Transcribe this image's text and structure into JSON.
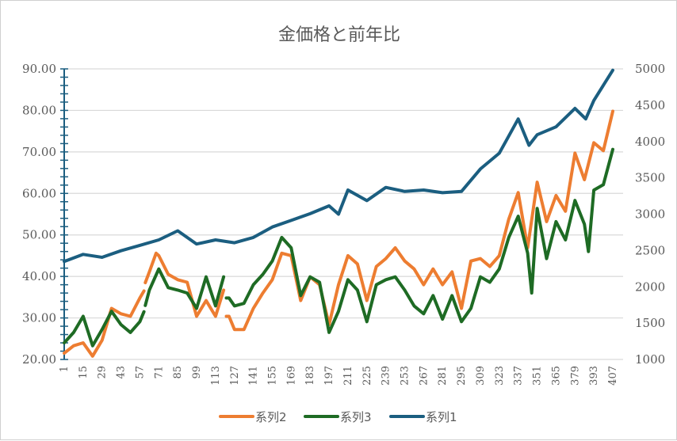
{
  "chart_data": {
    "type": "line",
    "title": "金価格と前年比",
    "xlabel": "",
    "ylabel": "",
    "x_ticks": [
      1,
      15,
      29,
      43,
      57,
      71,
      85,
      99,
      113,
      127,
      141,
      155,
      169,
      183,
      197,
      211,
      225,
      239,
      253,
      267,
      281,
      295,
      309,
      323,
      337,
      351,
      365,
      379,
      393,
      407
    ],
    "xlim": [
      1,
      407
    ],
    "y_left": {
      "ticks": [
        "20.00",
        "30.00",
        "40.00",
        "50.00",
        "60.00",
        "70.00",
        "80.00",
        "90.00"
      ],
      "ylim": [
        20,
        90
      ]
    },
    "y_right": {
      "ticks": [
        "1000",
        "1500",
        "2000",
        "2500",
        "3000",
        "3500",
        "4000",
        "4500",
        "5000"
      ],
      "ylim": [
        1000,
        5000
      ]
    },
    "grid": true,
    "legend_position": "bottom",
    "series": [
      {
        "name": "系列2",
        "axis": "left",
        "color": "#ED7D31",
        "x": [
          1,
          8,
          15,
          22,
          29,
          36,
          43,
          50,
          57,
          60,
          null,
          61,
          64,
          69,
          71,
          78,
          85,
          92,
          99,
          106,
          113,
          119,
          null,
          121,
          123,
          127,
          134,
          141,
          148,
          155,
          162,
          169,
          176,
          183,
          190,
          197,
          204,
          211,
          218,
          225,
          232,
          239,
          246,
          253,
          260,
          267,
          274,
          281,
          288,
          295,
          302,
          309,
          316,
          323,
          330,
          337,
          344,
          351,
          358,
          365,
          372,
          379,
          386,
          393,
          400,
          407
        ],
        "values": [
          21.5,
          23.3,
          24,
          20.8,
          24.6,
          32.3,
          31,
          30.4,
          34.8,
          36.5,
          null,
          38.5,
          41.1,
          45.6,
          45,
          40.5,
          39.2,
          38.6,
          30.4,
          34.2,
          30.4,
          36.7,
          null,
          30.4,
          30.4,
          27.2,
          27.2,
          32.3,
          36,
          39.2,
          45.6,
          45,
          34.2,
          39.9,
          38,
          28.4,
          38,
          45,
          43,
          34.2,
          42.4,
          44.3,
          46.9,
          43.7,
          41.8,
          38,
          41.8,
          38,
          41.1,
          32.3,
          43.7,
          44.3,
          42.4,
          45,
          53.8,
          60.2,
          46.9,
          62.7,
          53.2,
          59.5,
          55.7,
          69.7,
          63.3,
          72.2,
          70.3,
          79.8
        ]
      },
      {
        "name": "系列3",
        "axis": "left",
        "color": "#1E6B24",
        "x": [
          1,
          8,
          15,
          22,
          29,
          36,
          43,
          50,
          57,
          60,
          null,
          61,
          64,
          71,
          78,
          85,
          92,
          99,
          106,
          113,
          119,
          null,
          121,
          123,
          127,
          134,
          141,
          148,
          155,
          162,
          169,
          176,
          183,
          190,
          197,
          204,
          211,
          218,
          225,
          232,
          239,
          246,
          253,
          260,
          267,
          274,
          281,
          288,
          295,
          302,
          309,
          316,
          323,
          330,
          337,
          344,
          347,
          351,
          358,
          365,
          372,
          379,
          386,
          389,
          393,
          400,
          407
        ],
        "values": [
          24,
          26.5,
          30.4,
          23.3,
          27.2,
          31.6,
          28.4,
          26.5,
          29.1,
          31.5,
          null,
          33,
          36.7,
          41.8,
          37.3,
          36.7,
          36,
          32.3,
          39.9,
          32.9,
          39.9,
          null,
          34.8,
          34.8,
          32.9,
          33.5,
          38,
          40.5,
          43.7,
          49.4,
          46.9,
          35.4,
          39.9,
          38.6,
          26.5,
          31.6,
          39.2,
          36.7,
          29.1,
          38,
          39.2,
          39.9,
          36.7,
          32.9,
          31,
          35.4,
          29.7,
          35.4,
          29.1,
          32.3,
          39.9,
          38.6,
          41.8,
          49.4,
          54.5,
          45.6,
          36,
          56.4,
          44.3,
          53.2,
          48.8,
          58.3,
          52.6,
          46,
          60.8,
          62.1,
          70.6
        ]
      },
      {
        "name": "系列1",
        "axis": "right",
        "color": "#1B5E80",
        "x": [
          1,
          15,
          29,
          43,
          57,
          71,
          85,
          99,
          113,
          127,
          141,
          155,
          169,
          183,
          197,
          204,
          211,
          225,
          239,
          253,
          267,
          281,
          295,
          309,
          323,
          337,
          345,
          351,
          365,
          379,
          387,
          393,
          407
        ],
        "values": [
          2349,
          2446,
          2406,
          2497,
          2571,
          2646,
          2771,
          2589,
          2646,
          2606,
          2680,
          2823,
          2914,
          3006,
          3114,
          3000,
          3332,
          3186,
          3368,
          3313,
          3332,
          3295,
          3313,
          3622,
          3839,
          4311,
          3948,
          4093,
          4202,
          4456,
          4311,
          4565,
          4982
        ]
      }
    ]
  }
}
